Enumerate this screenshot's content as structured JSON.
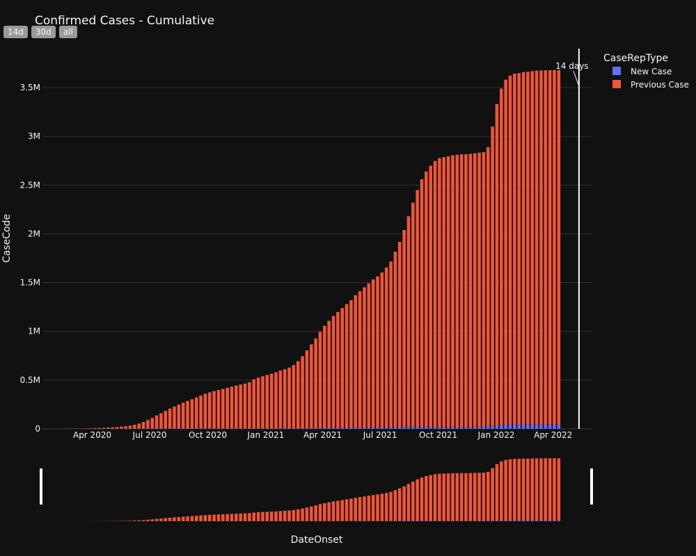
{
  "chart_data": {
    "type": "bar",
    "barmode": "stack",
    "title": "Confirmed Cases - Cumulative",
    "xlabel": "DateOnset",
    "ylabel": "CaseCode",
    "ylim": [
      0,
      3900000
    ],
    "y_ticks": [
      0,
      500000,
      1000000,
      1500000,
      2000000,
      2500000,
      3000000,
      3500000
    ],
    "y_tick_labels": [
      "0",
      "0.5M",
      "1M",
      "1.5M",
      "2M",
      "2.5M",
      "3M",
      "3.5M"
    ],
    "x_range": [
      "2020-01-12",
      "2022-06-01"
    ],
    "x_ticks": [
      "2020-04-01",
      "2020-07-01",
      "2020-10-01",
      "2021-01-01",
      "2021-04-01",
      "2021-07-01",
      "2021-10-01",
      "2022-01-01",
      "2022-04-01"
    ],
    "x_tick_labels": [
      "Apr 2020",
      "Jul 2020",
      "Oct 2020",
      "Jan 2021",
      "Apr 2021",
      "Jul 2021",
      "Oct 2021",
      "Jan 2022",
      "Apr 2022"
    ],
    "first_week": "2020-01-26",
    "week_step_days": 7,
    "legend_title": "CaseRepType",
    "legend_position": "top-right",
    "grid": true,
    "series": [
      {
        "name": "New Case",
        "color": "#636efa",
        "values": [
          100,
          100,
          100,
          100,
          200,
          200,
          300,
          300,
          400,
          400,
          500,
          500,
          600,
          700,
          800,
          1000,
          1200,
          1400,
          1600,
          1800,
          2000,
          2100,
          2200,
          2300,
          2300,
          2400,
          2400,
          2400,
          2300,
          2300,
          2200,
          2200,
          2100,
          2000,
          2000,
          1900,
          1900,
          1900,
          1900,
          1900,
          1900,
          2000,
          2000,
          2100,
          2100,
          2200,
          2200,
          2300,
          2400,
          2500,
          2600,
          2800,
          3000,
          3200,
          3500,
          3800,
          4200,
          4600,
          5000,
          5500,
          6000,
          6500,
          7000,
          7500,
          8000,
          8500,
          9000,
          9500,
          10000,
          10500,
          11000,
          11500,
          12000,
          12500,
          13000,
          14000,
          15000,
          16000,
          17000,
          18000,
          19000,
          20000,
          20000,
          20000,
          20000,
          20000,
          19000,
          18000,
          17000,
          17000,
          16000,
          16000,
          16000,
          16000,
          16000,
          16000,
          17000,
          18000,
          19000,
          30000,
          30000,
          32000,
          40000,
          42000,
          43000,
          44000,
          44000,
          44000,
          44000,
          44000,
          44000,
          44000,
          44000,
          44000,
          44000,
          44000
        ]
      },
      {
        "name": "Previous Case",
        "color": "#ef553b",
        "values": [
          300,
          500,
          700,
          900,
          1300,
          1600,
          2200,
          2900,
          3900,
          5000,
          6500,
          8000,
          10000,
          12000,
          14500,
          17500,
          21000,
          25000,
          31000,
          40000,
          52000,
          68000,
          88000,
          110000,
          135000,
          158000,
          182000,
          205000,
          226000,
          246000,
          266000,
          284000,
          302000,
          320000,
          340000,
          358000,
          372000,
          385000,
          397000,
          408000,
          419000,
          430000,
          442000,
          452000,
          462000,
          476000,
          505000,
          523000,
          537000,
          550000,
          563000,
          577000,
          595000,
          608000,
          625000,
          650000,
          690000,
          740000,
          800000,
          860000,
          920000,
          990000,
          1050000,
          1100000,
          1150000,
          1190000,
          1230000,
          1270000,
          1310000,
          1360000,
          1400000,
          1440000,
          1480000,
          1520000,
          1550000,
          1590000,
          1640000,
          1700000,
          1800000,
          1900000,
          2020000,
          2160000,
          2300000,
          2430000,
          2540000,
          2620000,
          2680000,
          2730000,
          2760000,
          2770000,
          2780000,
          2790000,
          2795000,
          2800000,
          2800000,
          2805000,
          2810000,
          2815000,
          2820000,
          2860000,
          3070000,
          3300000,
          3450000,
          3540000,
          3580000,
          3600000,
          3605000,
          3615000,
          3620000,
          3625000,
          3630000,
          3632000,
          3634000,
          3635000,
          3636000,
          3636000
        ]
      }
    ],
    "annotation": {
      "text": "14 days",
      "date": "2022-05-12"
    },
    "range_buttons": [
      "14d",
      "30d",
      "all"
    ]
  }
}
